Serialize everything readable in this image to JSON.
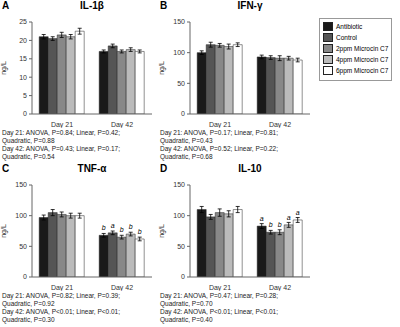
{
  "chart_data": [
    {
      "type": "bar",
      "panel_label": "A",
      "title": "IL-1β",
      "ylabel": "ng/L",
      "categories": [
        "Day 21",
        "Day 42"
      ],
      "series": [
        {
          "name": "Antibiotic",
          "color": "#1a1a1a",
          "values": [
            21.0,
            17.0
          ],
          "errors": [
            0.6,
            0.4
          ]
        },
        {
          "name": "Control",
          "color": "#555555",
          "values": [
            20.5,
            18.5
          ],
          "errors": [
            0.5,
            0.5
          ]
        },
        {
          "name": "2ppm Microcin C7",
          "color": "#888888",
          "values": [
            21.5,
            17.0
          ],
          "errors": [
            0.7,
            0.4
          ]
        },
        {
          "name": "4ppm Microcin C7",
          "color": "#bbbbbb",
          "values": [
            21.0,
            17.5
          ],
          "errors": [
            0.6,
            0.5
          ]
        },
        {
          "name": "6ppm Microcin C7",
          "color": "#ffffff",
          "values": [
            22.5,
            17.0
          ],
          "errors": [
            0.8,
            0.4
          ]
        }
      ],
      "ylim": [
        0,
        25
      ],
      "yticks": [
        0,
        5,
        10,
        15,
        20,
        25
      ],
      "annotations": [
        "Day 21: ANOVA, P=0.84; Linear, P=0.42;",
        "Quadratic, P=0.88",
        "Day 42: ANOVA, P=0.43; Linear, P=0.17;",
        "Quadratic, P=0.54"
      ]
    },
    {
      "type": "bar",
      "panel_label": "B",
      "title": "IFN-γ",
      "ylabel": "ng/L",
      "categories": [
        "Day 21",
        "Day 42"
      ],
      "series": [
        {
          "name": "Antibiotic",
          "color": "#1a1a1a",
          "values": [
            100,
            93
          ],
          "errors": [
            3,
            3
          ]
        },
        {
          "name": "Control",
          "color": "#555555",
          "values": [
            113,
            92
          ],
          "errors": [
            4,
            3
          ]
        },
        {
          "name": "2ppm Microcin C7",
          "color": "#888888",
          "values": [
            112,
            91
          ],
          "errors": [
            3,
            4
          ]
        },
        {
          "name": "4ppm Microcin C7",
          "color": "#bbbbbb",
          "values": [
            110,
            91
          ],
          "errors": [
            4,
            3
          ]
        },
        {
          "name": "6ppm Microcin C7",
          "color": "#ffffff",
          "values": [
            113,
            88
          ],
          "errors": [
            3,
            3
          ]
        }
      ],
      "ylim": [
        0,
        150
      ],
      "yticks": [
        0,
        50,
        100,
        150
      ],
      "legend": "right",
      "annotations": [
        "Day 21: ANOVA, P=0.17; Linear, P=0.81;",
        "Quadratic, P=0.43",
        "Day 42: ANOVA, P=0.52; Linear, P=0.22;",
        "Quadratic, P=0.68"
      ]
    },
    {
      "type": "bar",
      "panel_label": "C",
      "title": "TNF-α",
      "ylabel": "ng/L",
      "categories": [
        "Day 21",
        "Day 42"
      ],
      "series": [
        {
          "name": "Antibiotic",
          "color": "#1a1a1a",
          "values": [
            97,
            68
          ],
          "errors": [
            4,
            3
          ],
          "letters": [
            null,
            "b"
          ]
        },
        {
          "name": "Control",
          "color": "#555555",
          "values": [
            105,
            72
          ],
          "errors": [
            5,
            3
          ],
          "letters": [
            null,
            "a"
          ]
        },
        {
          "name": "2ppm Microcin C7",
          "color": "#888888",
          "values": [
            102,
            65
          ],
          "errors": [
            4,
            3
          ],
          "letters": [
            null,
            "b"
          ]
        },
        {
          "name": "4ppm Microcin C7",
          "color": "#bbbbbb",
          "values": [
            100,
            70
          ],
          "errors": [
            4,
            3
          ],
          "letters": [
            null,
            "b"
          ]
        },
        {
          "name": "6ppm Microcin C7",
          "color": "#ffffff",
          "values": [
            100,
            62
          ],
          "errors": [
            4,
            3
          ],
          "letters": [
            null,
            "b"
          ]
        }
      ],
      "ylim": [
        0,
        150
      ],
      "yticks": [
        0,
        50,
        100,
        150
      ],
      "annotations": [
        "Day 21: ANOVA, P=0.82; Linear, P=0.39;",
        "Quadratic, P=0.92",
        "Day 42: ANOVA, P<0.01; Linear, P<0.01;",
        "Quadratic, P=0.30"
      ]
    },
    {
      "type": "bar",
      "panel_label": "D",
      "title": "IL-10",
      "ylabel": "ng/L",
      "categories": [
        "Day 21",
        "Day 42"
      ],
      "series": [
        {
          "name": "Antibiotic",
          "color": "#1a1a1a",
          "values": [
            110,
            83
          ],
          "errors": [
            5,
            4
          ],
          "letters": [
            null,
            "a"
          ]
        },
        {
          "name": "Control",
          "color": "#555555",
          "values": [
            98,
            73
          ],
          "errors": [
            4,
            3
          ],
          "letters": [
            null,
            "b"
          ]
        },
        {
          "name": "2ppm Microcin C7",
          "color": "#888888",
          "values": [
            105,
            73
          ],
          "errors": [
            6,
            4
          ],
          "letters": [
            null,
            "b"
          ]
        },
        {
          "name": "4ppm Microcin C7",
          "color": "#bbbbbb",
          "values": [
            103,
            85
          ],
          "errors": [
            5,
            4
          ],
          "letters": [
            null,
            "a"
          ]
        },
        {
          "name": "6ppm Microcin C7",
          "color": "#ffffff",
          "values": [
            110,
            93
          ],
          "errors": [
            5,
            4
          ],
          "letters": [
            null,
            "a"
          ]
        }
      ],
      "ylim": [
        0,
        150
      ],
      "yticks": [
        0,
        50,
        100,
        150
      ],
      "annotations": [
        "Day 21: ANOVA, P=0.47; Linear, P=0.28;",
        "Quadratic, P=0.70",
        "Day 42: ANOVA, P<0.01; Linear, P<0.01;",
        "Quadratic, P=0.40"
      ]
    }
  ]
}
